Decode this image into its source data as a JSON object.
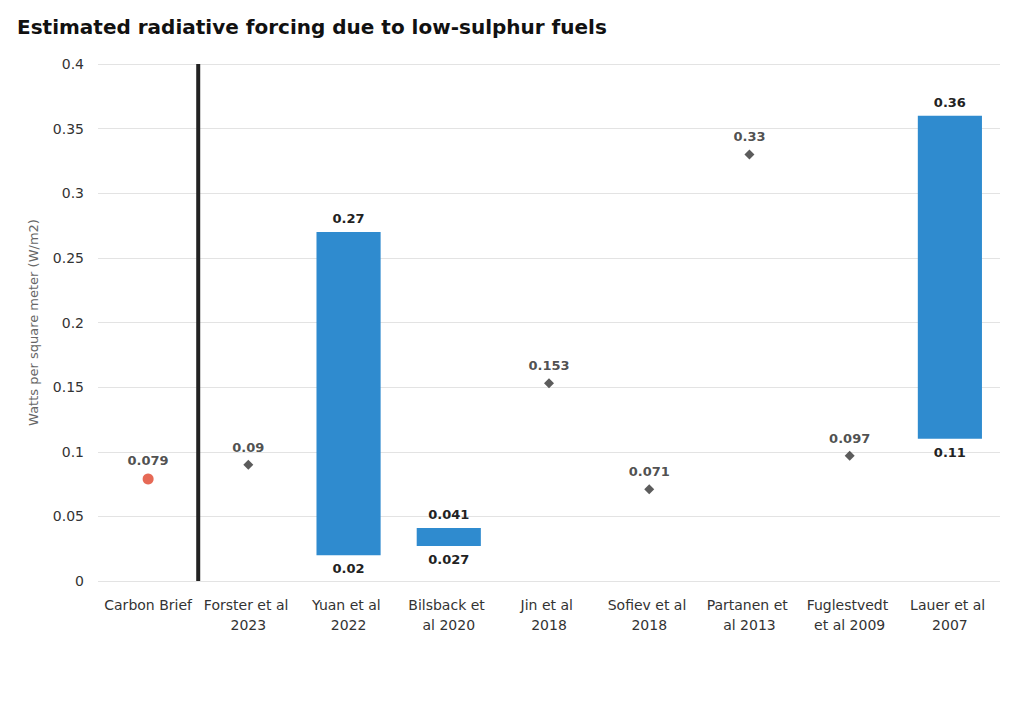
{
  "chart_data": {
    "type": "bar",
    "title": "Estimated radiative forcing due to low-sulphur fuels",
    "ylabel": "Watts per square meter (W/m2)",
    "categories": [
      "Carbon Brief",
      "Forster et al 2023",
      "Yuan et al 2022",
      "Bilsback et al 2020",
      "Jin et al 2018",
      "Sofiev et al 2018",
      "Partanen et al 2013",
      "Fuglestvedt et al 2009",
      "Lauer et al 2007"
    ],
    "series": [
      {
        "type": "scatter",
        "marker": "circle",
        "color": "#e0442c",
        "values": [
          0.079,
          null,
          null,
          null,
          null,
          null,
          null,
          null,
          null
        ]
      },
      {
        "type": "scatter",
        "marker": "diamond",
        "color": "#333333",
        "values": [
          null,
          0.09,
          null,
          null,
          0.153,
          0.071,
          0.33,
          0.097,
          null
        ]
      },
      {
        "type": "range",
        "color": "#2f8bcf",
        "low": [
          null,
          null,
          0.02,
          0.027,
          null,
          null,
          null,
          null,
          0.11
        ],
        "high": [
          null,
          null,
          0.27,
          0.041,
          null,
          null,
          null,
          null,
          0.36
        ]
      }
    ],
    "ylim": [
      0,
      0.4
    ],
    "yticks": [
      0,
      0.05,
      0.1,
      0.15,
      0.2,
      0.25,
      0.3,
      0.35,
      0.4
    ],
    "grid": true,
    "data_labels": true
  }
}
